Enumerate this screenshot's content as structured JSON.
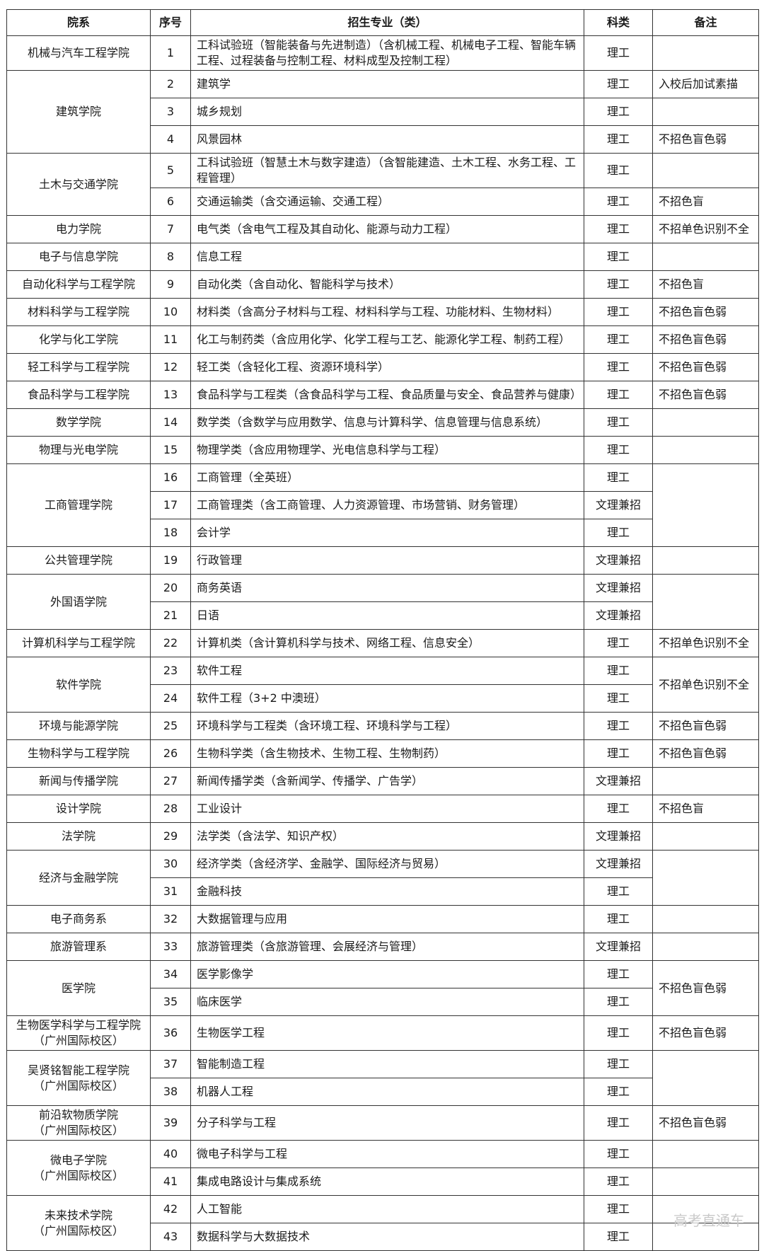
{
  "headers": [
    "院系",
    "序号",
    "招生专业（类）",
    "科类",
    "备注"
  ],
  "rows": [
    {
      "college": "机械与汽车工程学院",
      "college_span": 1,
      "num": "1",
      "major": "工科试验班（智能装备与先进制造）（含机械工程、机械电子工程、智能车辆工程、过程装备与控制工程、材料成型及控制工程）",
      "category": "理工",
      "remark": "",
      "remark_span": 1
    },
    {
      "college": "建筑学院",
      "college_span": 3,
      "num": "2",
      "major": "建筑学",
      "category": "理工",
      "remark": "入校后加试素描",
      "remark_span": 1
    },
    {
      "num": "3",
      "major": "城乡规划",
      "category": "理工",
      "remark": "",
      "remark_span": 1
    },
    {
      "num": "4",
      "major": "风景园林",
      "category": "理工",
      "remark": "不招色盲色弱",
      "remark_span": 1
    },
    {
      "college": "土木与交通学院",
      "college_span": 2,
      "num": "5",
      "major": "工科试验班（智慧土木与数字建造）（含智能建造、土木工程、水务工程、工程管理）",
      "category": "理工",
      "remark": "",
      "remark_span": 1
    },
    {
      "num": "6",
      "major": "交通运输类（含交通运输、交通工程）",
      "category": "理工",
      "remark": "不招色盲",
      "remark_span": 1
    },
    {
      "college": "电力学院",
      "college_span": 1,
      "num": "7",
      "major": "电气类（含电气工程及其自动化、能源与动力工程）",
      "category": "理工",
      "remark": "不招单色识别不全",
      "remark_span": 1
    },
    {
      "college": "电子与信息学院",
      "college_span": 1,
      "num": "8",
      "major": "信息工程",
      "category": "理工",
      "remark": "",
      "remark_span": 1
    },
    {
      "college": "自动化科学与工程学院",
      "college_span": 1,
      "num": "9",
      "major": "自动化类（含自动化、智能科学与技术）",
      "category": "理工",
      "remark": "不招色盲",
      "remark_span": 1
    },
    {
      "college": "材料科学与工程学院",
      "college_span": 1,
      "num": "10",
      "major": "材料类（含高分子材料与工程、材料科学与工程、功能材料、生物材料）",
      "category": "理工",
      "remark": "不招色盲色弱",
      "remark_span": 1
    },
    {
      "college": "化学与化工学院",
      "college_span": 1,
      "num": "11",
      "major": "化工与制药类（含应用化学、化学工程与工艺、能源化学工程、制药工程）",
      "category": "理工",
      "remark": "不招色盲色弱",
      "remark_span": 1
    },
    {
      "college": "轻工科学与工程学院",
      "college_span": 1,
      "num": "12",
      "major": "轻工类（含轻化工程、资源环境科学）",
      "category": "理工",
      "remark": "不招色盲色弱",
      "remark_span": 1
    },
    {
      "college": "食品科学与工程学院",
      "college_span": 1,
      "num": "13",
      "major": "食品科学与工程类（含食品科学与工程、食品质量与安全、食品营养与健康）",
      "category": "理工",
      "remark": "不招色盲色弱",
      "remark_span": 1
    },
    {
      "college": "数学学院",
      "college_span": 1,
      "num": "14",
      "major": "数学类（含数学与应用数学、信息与计算科学、信息管理与信息系统）",
      "category": "理工",
      "remark": "",
      "remark_span": 1
    },
    {
      "college": "物理与光电学院",
      "college_span": 1,
      "num": "15",
      "major": "物理学类（含应用物理学、光电信息科学与工程）",
      "category": "理工",
      "remark": "",
      "remark_span": 1
    },
    {
      "college": "工商管理学院",
      "college_span": 3,
      "num": "16",
      "major": "工商管理（全英班）",
      "category": "理工",
      "remark": "",
      "remark_span": 3
    },
    {
      "num": "17",
      "major": "工商管理类（含工商管理、人力资源管理、市场营销、财务管理）",
      "category": "文理兼招"
    },
    {
      "num": "18",
      "major": "会计学",
      "category": "理工"
    },
    {
      "college": "公共管理学院",
      "college_span": 1,
      "num": "19",
      "major": "行政管理",
      "category": "文理兼招",
      "remark": "",
      "remark_span": 1
    },
    {
      "college": "外国语学院",
      "college_span": 2,
      "num": "20",
      "major": "商务英语",
      "category": "文理兼招",
      "remark": "",
      "remark_span": 2
    },
    {
      "num": "21",
      "major": "日语",
      "category": "文理兼招"
    },
    {
      "college": "计算机科学与工程学院",
      "college_span": 1,
      "num": "22",
      "major": "计算机类（含计算机科学与技术、网络工程、信息安全）",
      "category": "理工",
      "remark": "不招单色识别不全",
      "remark_span": 1
    },
    {
      "college": "软件学院",
      "college_span": 2,
      "num": "23",
      "major": "软件工程",
      "category": "理工",
      "remark": "不招单色识别不全",
      "remark_span": 2
    },
    {
      "num": "24",
      "major": "软件工程（3+2 中澳班）",
      "category": "理工"
    },
    {
      "college": "环境与能源学院",
      "college_span": 1,
      "num": "25",
      "major": "环境科学与工程类（含环境工程、环境科学与工程）",
      "category": "理工",
      "remark": "不招色盲色弱",
      "remark_span": 1
    },
    {
      "college": "生物科学与工程学院",
      "college_span": 1,
      "num": "26",
      "major": "生物科学类（含生物技术、生物工程、生物制药）",
      "category": "理工",
      "remark": "不招色盲色弱",
      "remark_span": 1
    },
    {
      "college": "新闻与传播学院",
      "college_span": 1,
      "num": "27",
      "major": "新闻传播学类（含新闻学、传播学、广告学）",
      "category": "文理兼招",
      "remark": "",
      "remark_span": 1
    },
    {
      "college": "设计学院",
      "college_span": 1,
      "num": "28",
      "major": "工业设计",
      "category": "理工",
      "remark": "不招色盲",
      "remark_span": 1
    },
    {
      "college": "法学院",
      "college_span": 1,
      "num": "29",
      "major": "法学类（含法学、知识产权）",
      "category": "文理兼招",
      "remark": "",
      "remark_span": 1
    },
    {
      "college": "经济与金融学院",
      "college_span": 2,
      "num": "30",
      "major": "经济学类（含经济学、金融学、国际经济与贸易）",
      "category": "文理兼招",
      "remark": "",
      "remark_span": 2
    },
    {
      "num": "31",
      "major": "金融科技",
      "category": "理工"
    },
    {
      "college": "电子商务系",
      "college_span": 1,
      "num": "32",
      "major": "大数据管理与应用",
      "category": "理工",
      "remark": "",
      "remark_span": 1
    },
    {
      "college": "旅游管理系",
      "college_span": 1,
      "num": "33",
      "major": "旅游管理类（含旅游管理、会展经济与管理）",
      "category": "文理兼招",
      "remark": "",
      "remark_span": 1
    },
    {
      "college": "医学院",
      "college_span": 2,
      "num": "34",
      "major": "医学影像学",
      "category": "理工",
      "remark": "不招色盲色弱",
      "remark_span": 2
    },
    {
      "num": "35",
      "major": "临床医学",
      "category": "理工"
    },
    {
      "college": "生物医学科学与工程学院\n（广州国际校区）",
      "college_span": 1,
      "num": "36",
      "major": "生物医学工程",
      "category": "理工",
      "remark": "不招色盲色弱",
      "remark_span": 1
    },
    {
      "college": "吴贤铭智能工程学院\n（广州国际校区）",
      "college_span": 2,
      "num": "37",
      "major": "智能制造工程",
      "category": "理工",
      "remark": "",
      "remark_span": 2
    },
    {
      "num": "38",
      "major": "机器人工程",
      "category": "理工"
    },
    {
      "college": "前沿软物质学院\n（广州国际校区）",
      "college_span": 1,
      "num": "39",
      "major": "分子科学与工程",
      "category": "理工",
      "remark": "不招色盲色弱",
      "remark_span": 1
    },
    {
      "college": "微电子学院\n（广州国际校区）",
      "college_span": 2,
      "num": "40",
      "major": "微电子科学与工程",
      "category": "理工",
      "remark": "",
      "remark_span": 1
    },
    {
      "num": "41",
      "major": "集成电路设计与集成系统",
      "category": "理工",
      "remark": "",
      "remark_span": 1
    },
    {
      "college": "未来技术学院\n（广州国际校区）",
      "college_span": 2,
      "num": "42",
      "major": "人工智能",
      "category": "理工",
      "remark": "",
      "remark_span": 1
    },
    {
      "num": "43",
      "major": "数据科学与大数据技术",
      "category": "理工",
      "remark": "",
      "remark_span": 1
    }
  ],
  "watermark": "高考直通车"
}
